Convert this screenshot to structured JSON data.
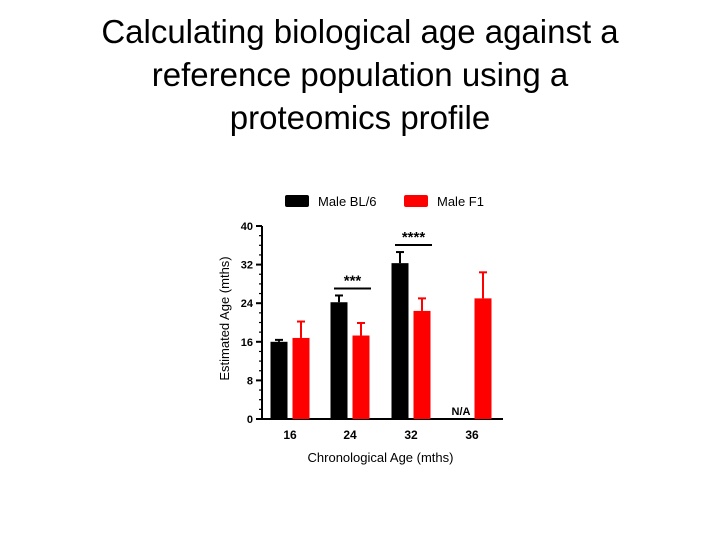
{
  "slide": {
    "title_lines": [
      "Calculating biological age against a",
      "reference population using a",
      "proteomics profile"
    ]
  },
  "chart_data": {
    "type": "bar",
    "categories": [
      "16",
      "24",
      "32",
      "36"
    ],
    "xlabel": "Chronological Age (mths)",
    "ylabel": "Estimated Age (mths)",
    "ylim": [
      0,
      40
    ],
    "yticks": [
      0,
      8,
      16,
      24,
      32,
      40
    ],
    "legend_position": "top",
    "series": [
      {
        "name": "Male BL/6",
        "color": "#000000",
        "values": [
          16,
          24.2,
          32.3,
          null
        ],
        "errors": [
          0.4,
          1.4,
          2.3,
          null
        ]
      },
      {
        "name": "Male F1",
        "color": "#ff0000",
        "values": [
          16.8,
          17.3,
          22.4,
          25
        ],
        "errors": [
          3.4,
          2.6,
          2.6,
          5.4
        ]
      }
    ],
    "annotations": [
      {
        "text": "***",
        "category": "24"
      },
      {
        "text": "****",
        "category": "32"
      },
      {
        "text": "N/A",
        "category": "36"
      }
    ]
  }
}
